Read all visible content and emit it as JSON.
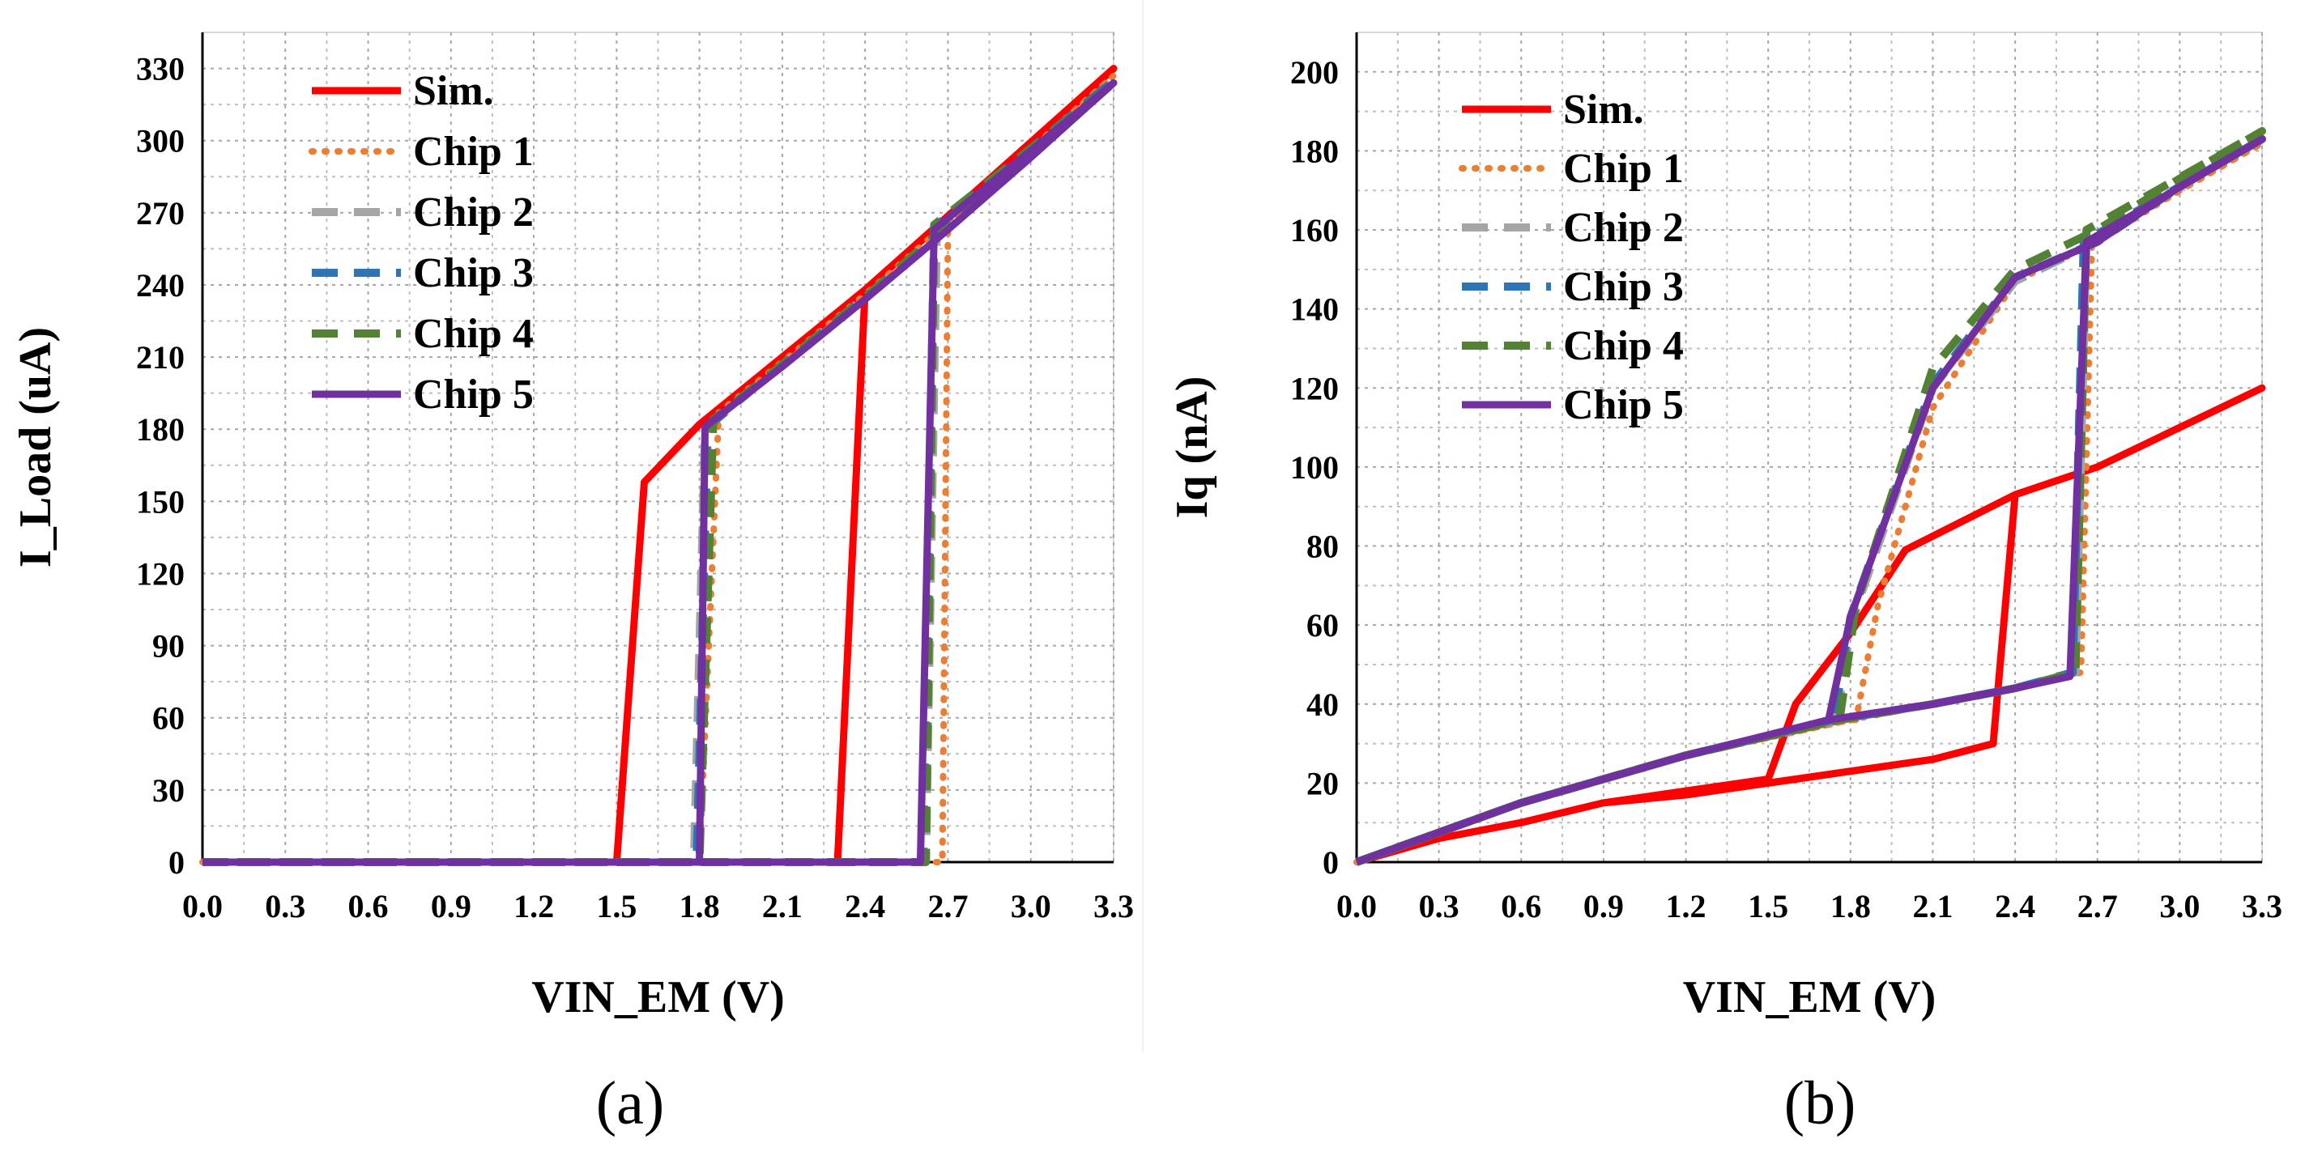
{
  "chart_data": [
    {
      "panel": "(a)",
      "type": "line",
      "xlabel": "VIN_EM (V)",
      "ylabel": "I_Load (uA)",
      "xlim": [
        0,
        3.3
      ],
      "ylim": [
        0,
        345
      ],
      "xticks": [
        "0.0",
        "0.3",
        "0.6",
        "0.9",
        "1.2",
        "1.5",
        "1.8",
        "2.1",
        "2.4",
        "2.7",
        "3.0",
        "3.3"
      ],
      "yticks": [
        "0",
        "30",
        "60",
        "90",
        "120",
        "150",
        "180",
        "210",
        "240",
        "270",
        "300",
        "330"
      ],
      "grid": "dotted x and y",
      "legend_position": "top-left",
      "series": [
        {
          "name": "Sim.",
          "color": "#ff0000",
          "style": "solid",
          "points": [
            [
              0,
              0
            ],
            [
              1.5,
              0
            ],
            [
              1.6,
              158
            ],
            [
              1.7,
              170
            ],
            [
              1.8,
              182
            ],
            [
              2.1,
              210
            ],
            [
              2.4,
              238
            ],
            [
              2.7,
              268
            ],
            [
              3.0,
              298
            ],
            [
              3.3,
              330
            ],
            [
              2.4,
              238
            ],
            [
              2.3,
              0
            ],
            [
              1.5,
              0
            ],
            [
              0,
              0
            ]
          ]
        },
        {
          "name": "Chip 1",
          "color": "#ed7d31",
          "style": "dotted",
          "points": [
            [
              0,
              0
            ],
            [
              1.8,
              0
            ],
            [
              1.87,
              187
            ],
            [
              2.1,
              208
            ],
            [
              2.4,
              236
            ],
            [
              2.7,
              266
            ],
            [
              3.0,
              296
            ],
            [
              3.3,
              327
            ],
            [
              2.7,
              266
            ],
            [
              2.68,
              0
            ],
            [
              1.8,
              0
            ],
            [
              0,
              0
            ]
          ]
        },
        {
          "name": "Chip 2",
          "color": "#a5a5a5",
          "style": "dashed",
          "points": [
            [
              0,
              0
            ],
            [
              1.78,
              0
            ],
            [
              1.82,
              180
            ],
            [
              2.1,
              207
            ],
            [
              2.4,
              235
            ],
            [
              2.7,
              264
            ],
            [
              3.0,
              294
            ],
            [
              3.3,
              325
            ],
            [
              2.66,
              264
            ],
            [
              2.62,
              0
            ],
            [
              1.78,
              0
            ],
            [
              0,
              0
            ]
          ]
        },
        {
          "name": "Chip 3",
          "color": "#2e75b6",
          "style": "dashed",
          "points": [
            [
              0,
              0
            ],
            [
              1.79,
              0
            ],
            [
              1.83,
              181
            ],
            [
              2.1,
              207
            ],
            [
              2.4,
              235
            ],
            [
              2.7,
              264
            ],
            [
              3.0,
              294
            ],
            [
              3.3,
              325
            ],
            [
              2.65,
              264
            ],
            [
              2.61,
              0
            ],
            [
              1.79,
              0
            ],
            [
              0,
              0
            ]
          ]
        },
        {
          "name": "Chip 4",
          "color": "#548235",
          "style": "dashed",
          "points": [
            [
              0,
              0
            ],
            [
              1.8,
              0
            ],
            [
              1.85,
              184
            ],
            [
              2.1,
              207
            ],
            [
              2.4,
              235
            ],
            [
              2.7,
              265
            ],
            [
              3.0,
              294
            ],
            [
              3.3,
              324
            ],
            [
              2.65,
              265
            ],
            [
              2.62,
              0
            ],
            [
              1.8,
              0
            ],
            [
              0,
              0
            ]
          ]
        },
        {
          "name": "Chip 5",
          "color": "#7030a0",
          "style": "solid",
          "points": [
            [
              0,
              0
            ],
            [
              1.8,
              0
            ],
            [
              1.82,
              181
            ],
            [
              2.1,
              206
            ],
            [
              2.4,
              234
            ],
            [
              2.7,
              263
            ],
            [
              3.0,
              293
            ],
            [
              3.3,
              324
            ],
            [
              2.65,
              263
            ],
            [
              2.6,
              0
            ],
            [
              1.8,
              0
            ],
            [
              0,
              0
            ]
          ]
        }
      ]
    },
    {
      "panel": "(b)",
      "type": "line",
      "xlabel": "VIN_EM (V)",
      "ylabel": "Iq (nA)",
      "xlim": [
        0,
        3.3
      ],
      "ylim": [
        0,
        210
      ],
      "xticks": [
        "0.0",
        "0.3",
        "0.6",
        "0.9",
        "1.2",
        "1.5",
        "1.8",
        "2.1",
        "2.4",
        "2.7",
        "3.0",
        "3.3"
      ],
      "yticks": [
        "0",
        "20",
        "40",
        "60",
        "80",
        "100",
        "120",
        "140",
        "160",
        "180",
        "200"
      ],
      "grid": "dotted x and y",
      "legend_position": "top-left",
      "series": [
        {
          "name": "Sim.",
          "color": "#ff0000",
          "style": "solid",
          "points": [
            [
              0,
              0
            ],
            [
              0.3,
              6
            ],
            [
              0.6,
              10
            ],
            [
              0.9,
              15
            ],
            [
              1.2,
              18
            ],
            [
              1.5,
              21
            ],
            [
              1.6,
              40
            ],
            [
              1.8,
              58
            ],
            [
              2.0,
              79
            ],
            [
              2.4,
              93
            ],
            [
              2.7,
              100
            ],
            [
              3.0,
              110
            ],
            [
              3.3,
              120
            ],
            [
              2.7,
              100
            ],
            [
              2.4,
              93
            ],
            [
              2.32,
              30
            ],
            [
              2.1,
              26
            ],
            [
              1.8,
              23
            ],
            [
              1.6,
              21
            ],
            [
              1.2,
              17
            ],
            [
              0.9,
              15
            ],
            [
              0.6,
              10
            ],
            [
              0.3,
              6
            ],
            [
              0,
              0
            ]
          ]
        },
        {
          "name": "Chip 1",
          "color": "#ed7d31",
          "style": "dotted",
          "points": [
            [
              0,
              0
            ],
            [
              0.6,
              15
            ],
            [
              1.2,
              27
            ],
            [
              1.8,
              36
            ],
            [
              1.82,
              36
            ],
            [
              1.9,
              65
            ],
            [
              2.1,
              115
            ],
            [
              2.4,
              147
            ],
            [
              2.7,
              157
            ],
            [
              3.0,
              170
            ],
            [
              3.3,
              182
            ],
            [
              2.68,
              157
            ],
            [
              2.64,
              48
            ],
            [
              2.4,
              44
            ],
            [
              2.1,
              40
            ],
            [
              1.8,
              36
            ],
            [
              1.2,
              27
            ],
            [
              0.6,
              15
            ],
            [
              0,
              0
            ]
          ]
        },
        {
          "name": "Chip 2",
          "color": "#a5a5a5",
          "style": "dashed",
          "points": [
            [
              0,
              0
            ],
            [
              0.6,
              15
            ],
            [
              1.2,
              27
            ],
            [
              1.75,
              36
            ],
            [
              1.8,
              60
            ],
            [
              2.1,
              120
            ],
            [
              2.4,
              147
            ],
            [
              2.7,
              157
            ],
            [
              3.0,
              171
            ],
            [
              3.3,
              183
            ],
            [
              2.66,
              157
            ],
            [
              2.62,
              48
            ],
            [
              2.4,
              44
            ],
            [
              2.1,
              40
            ],
            [
              1.75,
              36
            ],
            [
              1.2,
              27
            ],
            [
              0.6,
              15
            ],
            [
              0,
              0
            ]
          ]
        },
        {
          "name": "Chip 3",
          "color": "#2e75b6",
          "style": "dashed",
          "points": [
            [
              0,
              0
            ],
            [
              0.6,
              15
            ],
            [
              1.2,
              27
            ],
            [
              1.74,
              36
            ],
            [
              1.8,
              62
            ],
            [
              2.1,
              121
            ],
            [
              2.4,
              148
            ],
            [
              2.7,
              157
            ],
            [
              3.0,
              171
            ],
            [
              3.3,
              183
            ],
            [
              2.65,
              157
            ],
            [
              2.61,
              48
            ],
            [
              2.4,
              44
            ],
            [
              2.1,
              40
            ],
            [
              1.74,
              36
            ],
            [
              1.2,
              27
            ],
            [
              0.6,
              15
            ],
            [
              0,
              0
            ]
          ]
        },
        {
          "name": "Chip 4",
          "color": "#548235",
          "style": "dashed",
          "points": [
            [
              0,
              0
            ],
            [
              0.6,
              15
            ],
            [
              1.2,
              27
            ],
            [
              1.76,
              36
            ],
            [
              1.82,
              65
            ],
            [
              2.1,
              125
            ],
            [
              2.4,
              150
            ],
            [
              2.7,
              160
            ],
            [
              3.0,
              173
            ],
            [
              3.3,
              185
            ],
            [
              2.66,
              160
            ],
            [
              2.62,
              48
            ],
            [
              2.4,
              44
            ],
            [
              2.1,
              40
            ],
            [
              1.76,
              36
            ],
            [
              1.2,
              27
            ],
            [
              0.6,
              15
            ],
            [
              0,
              0
            ]
          ]
        },
        {
          "name": "Chip 5",
          "color": "#7030a0",
          "style": "solid",
          "points": [
            [
              0,
              0
            ],
            [
              0.6,
              15
            ],
            [
              1.2,
              27
            ],
            [
              1.72,
              36
            ],
            [
              1.8,
              62
            ],
            [
              2.1,
              120
            ],
            [
              2.4,
              148
            ],
            [
              2.7,
              157
            ],
            [
              3.0,
              171
            ],
            [
              3.3,
              183
            ],
            [
              2.66,
              157
            ],
            [
              2.6,
              47
            ],
            [
              2.4,
              44
            ],
            [
              2.1,
              40
            ],
            [
              1.72,
              36
            ],
            [
              1.2,
              27
            ],
            [
              0.6,
              15
            ],
            [
              0,
              0
            ]
          ]
        }
      ]
    }
  ]
}
